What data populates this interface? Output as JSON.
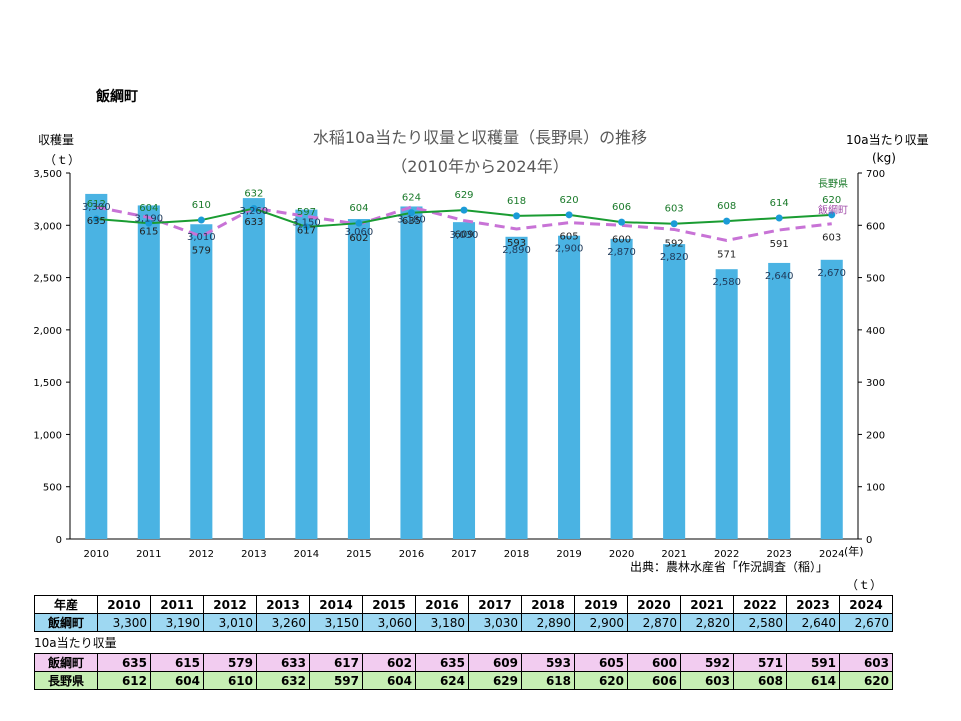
{
  "page": {
    "town_title": "飯綱町",
    "source": "出典：農林水産省「作況調査（稲）」",
    "table_unit": "（ｔ）",
    "yield_caption": "10a当たり収量"
  },
  "chart_data": {
    "type": "bar+line",
    "title": "水稲10a当たり収量と収穫量（長野県）の推移",
    "subtitle": "（2010年から2024年）",
    "left_axis_label": "収穫量",
    "left_axis_unit": "（ｔ）",
    "right_axis_label": "10a当たり収量",
    "right_axis_unit": "(kg)",
    "x_unit": "(年)",
    "categories": [
      "2010",
      "2011",
      "2012",
      "2013",
      "2014",
      "2015",
      "2016",
      "2017",
      "2018",
      "2019",
      "2020",
      "2021",
      "2022",
      "2023",
      "2024"
    ],
    "y_left_ticks": [
      "0",
      "500",
      "1,000",
      "1,500",
      "2,000",
      "2,500",
      "3,000",
      "3,500"
    ],
    "y_left_range": [
      0,
      3500
    ],
    "y_right_ticks": [
      "0",
      "100",
      "200",
      "300",
      "400",
      "500",
      "600",
      "700"
    ],
    "y_right_range": [
      0,
      700
    ],
    "bars": {
      "name": "収穫量（飯綱町）",
      "values": [
        3300,
        3190,
        3010,
        3260,
        3150,
        3060,
        3180,
        3030,
        2890,
        2900,
        2870,
        2820,
        2580,
        2640,
        2670
      ],
      "labels": [
        "3,300",
        "3,190",
        "3,010",
        "3,260",
        "3,150",
        "3,060",
        "3,180",
        "3,030",
        "2,890",
        "2,900",
        "2,870",
        "2,820",
        "2,580",
        "2,640",
        "2,670"
      ],
      "color": "#4ab3e3"
    },
    "series": [
      {
        "name": "長野県",
        "values": [
          612,
          604,
          610,
          632,
          597,
          604,
          624,
          629,
          618,
          620,
          606,
          603,
          608,
          614,
          620
        ],
        "color": "#1a9c32",
        "marker_color": "#1b9bd7",
        "style": "solid"
      },
      {
        "name": "飯綱町",
        "values": [
          635,
          615,
          579,
          633,
          617,
          602,
          635,
          609,
          593,
          605,
          600,
          592,
          571,
          591,
          603
        ],
        "color": "#c873d6",
        "style": "dashed"
      }
    ]
  },
  "table": {
    "header_label": "年産",
    "years": [
      "2010",
      "2011",
      "2012",
      "2013",
      "2014",
      "2015",
      "2016",
      "2017",
      "2018",
      "2019",
      "2020",
      "2021",
      "2022",
      "2023",
      "2024"
    ],
    "production": {
      "label": "飯綱町",
      "values": [
        "3,300",
        "3,190",
        "3,010",
        "3,260",
        "3,150",
        "3,060",
        "3,180",
        "3,030",
        "2,890",
        "2,900",
        "2,870",
        "2,820",
        "2,580",
        "2,640",
        "2,670"
      ]
    },
    "yield_iizuna": {
      "label": "飯綱町",
      "values": [
        "635",
        "615",
        "579",
        "633",
        "617",
        "602",
        "635",
        "609",
        "593",
        "605",
        "600",
        "592",
        "571",
        "591",
        "603"
      ]
    },
    "yield_nagano": {
      "label": "長野県",
      "values": [
        "612",
        "604",
        "610",
        "632",
        "597",
        "604",
        "624",
        "629",
        "618",
        "620",
        "606",
        "603",
        "608",
        "614",
        "620"
      ]
    }
  }
}
